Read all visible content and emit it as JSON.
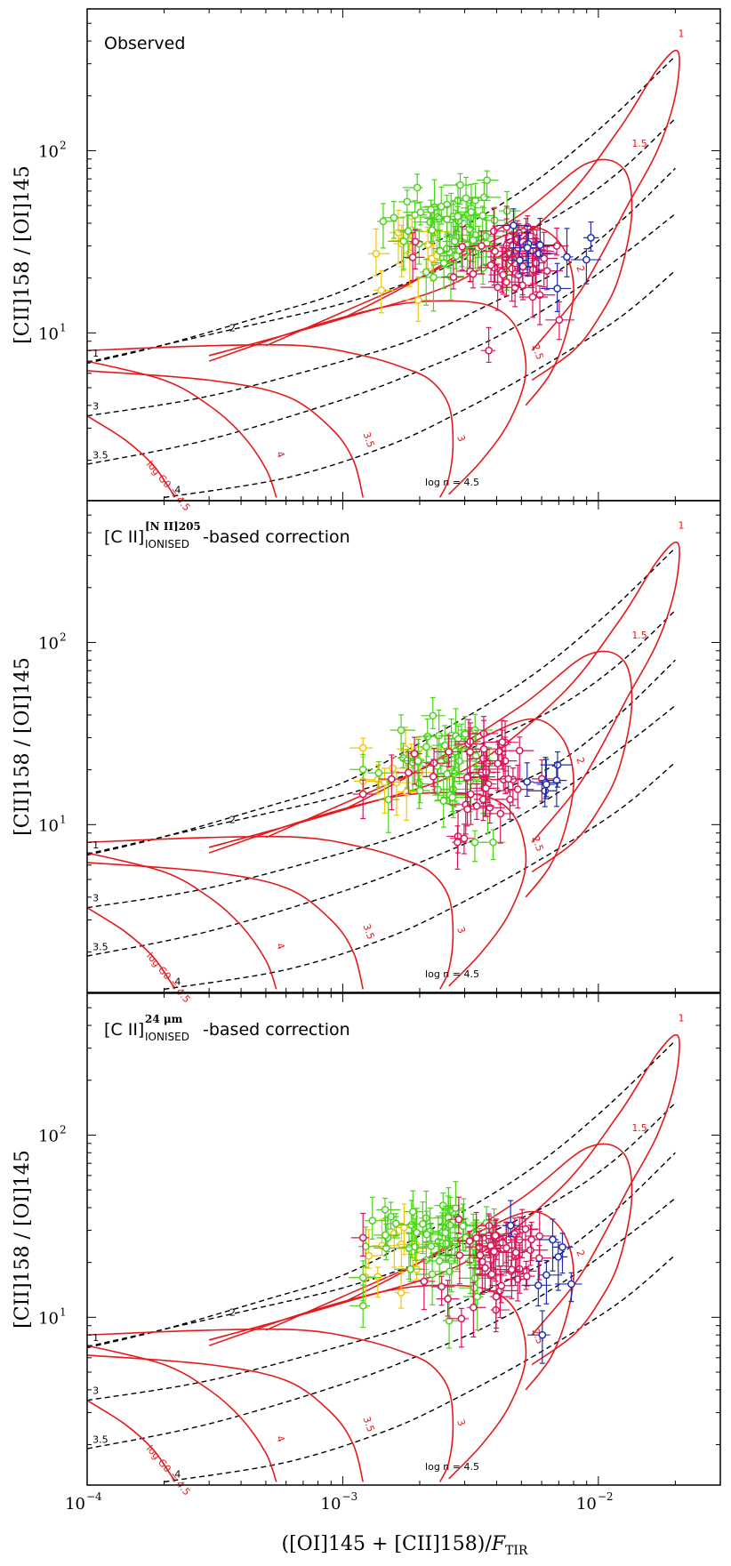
{
  "chart_data": {
    "type": "scatter",
    "x_scale": "log",
    "y_scale": "log",
    "xlim": [
      0.0001,
      0.03
    ],
    "ylim": [
      1.2,
      600
    ],
    "xlabel": "([OI]145 + [CII]158)/F_TIR",
    "xlabel_parts": {
      "a": "([OI]145 + [CII]158)/",
      "b": "F",
      "c": "TIR"
    },
    "ylabel": "[CII]158 / [OI]145",
    "x_ticks": [
      {
        "value": 0.0001,
        "base": "10",
        "exp": "−4"
      },
      {
        "value": 0.001,
        "base": "10",
        "exp": "−3"
      },
      {
        "value": 0.01,
        "base": "10",
        "exp": "−2"
      }
    ],
    "y_ticks": [
      {
        "value": 10,
        "base": "10",
        "exp": "1"
      },
      {
        "value": 100,
        "base": "10",
        "exp": "2"
      }
    ],
    "colors": {
      "yellow": "#f2c500",
      "green": "#4ad31a",
      "magenta": "#d9145a",
      "blue": "#1f2db3",
      "model_G": "#e41a1c",
      "model_n": "#000000"
    },
    "model_grid": {
      "density_labels": [
        "1",
        "2",
        "3",
        "3.5",
        "4",
        "log n = 4.5"
      ],
      "G0_labels": [
        "1",
        "1.5",
        "2",
        "2.5",
        "3",
        "3.5",
        "4",
        "log G0 = 4.5"
      ],
      "density_curves": [
        {
          "label": "1",
          "x": [
            0.0001,
            0.0002,
            0.0005,
            0.001,
            0.002,
            0.005,
            0.01,
            0.02
          ],
          "y": [
            6.8,
            8.6,
            12.5,
            17,
            28,
            60,
            130,
            330
          ]
        },
        {
          "label": "2",
          "x": [
            0.0001,
            0.0002,
            0.0005,
            0.001,
            0.002,
            0.005,
            0.008,
            0.0125,
            0.02
          ],
          "y": [
            6.9,
            8.6,
            11.5,
            14.5,
            20,
            35,
            50,
            80,
            150
          ]
        },
        {
          "label": "3",
          "x": [
            0.0001,
            0.0003,
            0.001,
            0.002,
            0.004,
            0.007,
            0.012,
            0.02
          ],
          "y": [
            3.5,
            4.5,
            7,
            9.5,
            15,
            22,
            40,
            80
          ]
        },
        {
          "label": "3.5",
          "x": [
            0.0001,
            0.0003,
            0.001,
            0.002,
            0.004,
            0.008,
            0.013,
            0.02
          ],
          "y": [
            1.9,
            2.6,
            4.3,
            6.2,
            9.5,
            17,
            28,
            45
          ]
        },
        {
          "label": "4",
          "x": [
            0.0002,
            0.0006,
            0.0015,
            0.003,
            0.006,
            0.012,
            0.02
          ],
          "y": [
            1.25,
            1.6,
            2.4,
            3.8,
            6.5,
            12,
            22
          ]
        }
      ],
      "G0_curves": [
        {
          "label": "1",
          "x": [
            0.0003,
            0.001,
            0.003,
            0.007,
            0.012,
            0.017,
            0.0205,
            0.02,
            0.017,
            0.013,
            0.01,
            0.008,
            0.0055
          ],
          "y": [
            7.5,
            12,
            20,
            50,
            130,
            280,
            350,
            200,
            100,
            50,
            25,
            15,
            8
          ]
        },
        {
          "label": "1.5",
          "x": [
            0.001,
            0.002,
            0.005,
            0.009,
            0.0125,
            0.0135,
            0.012,
            0.01,
            0.008,
            0.0055
          ],
          "y": [
            12,
            20,
            45,
            85,
            80,
            45,
            20,
            12,
            8,
            5.5
          ]
        },
        {
          "label": "2",
          "x": [
            0.0005,
            0.001,
            0.002,
            0.0035,
            0.0055,
            0.0072,
            0.008,
            0.0075,
            0.0065,
            0.0052
          ],
          "y": [
            8.5,
            13,
            20,
            30,
            38,
            30,
            18,
            10,
            6,
            4
          ]
        },
        {
          "label": "2.5",
          "x": [
            0.0003,
            0.0007,
            0.0015,
            0.0025,
            0.0038,
            0.0048,
            0.0052,
            0.0045,
            0.0035,
            0.0026
          ],
          "y": [
            7,
            10.5,
            14,
            15,
            14,
            10.5,
            6,
            3.3,
            2,
            1.3
          ]
        },
        {
          "label": "3",
          "x": [
            0.0001,
            0.0003,
            0.0007,
            0.0012,
            0.0017,
            0.0022,
            0.0026,
            0.0027,
            0.0026,
            0.0024
          ],
          "y": [
            8,
            8.5,
            8.5,
            7.5,
            6.5,
            5.5,
            4,
            2.5,
            1.6,
            1.25
          ]
        },
        {
          "label": "3.5",
          "x": [
            0.0001,
            0.0003,
            0.0006,
            0.0009,
            0.0011,
            0.0012
          ],
          "y": [
            6.2,
            5.5,
            4.5,
            3,
            2,
            1.25
          ]
        },
        {
          "label": "4",
          "x": [
            0.0001,
            0.0002,
            0.0003,
            0.0004,
            0.0005,
            0.00055
          ],
          "y": [
            7,
            5.5,
            4,
            2.8,
            1.8,
            1.25
          ]
        },
        {
          "label": "log G0 = 4.5",
          "x": [
            0.0001,
            0.00014,
            0.00018,
            0.00021,
            0.00022
          ],
          "y": [
            3.5,
            2.6,
            1.9,
            1.4,
            1.25
          ]
        }
      ]
    },
    "panels": [
      {
        "title": "Observed",
        "groups": [
          {
            "name": "yellow",
            "x_mean": 0.00185,
            "x_sd": 0.0003,
            "y_mean": 29,
            "y_sd": 6,
            "n": 14
          },
          {
            "name": "green",
            "x_mean": 0.0029,
            "x_sd": 0.0008,
            "y_mean": 38,
            "y_sd": 11,
            "n": 60
          },
          {
            "name": "magenta",
            "x_mean": 0.0047,
            "x_sd": 0.0011,
            "y_mean": 26,
            "y_sd": 7,
            "n": 50
          },
          {
            "name": "blue",
            "x_mean": 0.0068,
            "x_sd": 0.0013,
            "y_mean": 25,
            "y_sd": 8,
            "n": 10
          }
        ]
      },
      {
        "title": "[CII]^[NII]205_IONISED-based correction",
        "title_parts": {
          "main": "[C II]",
          "sup": "[N II]205",
          "sub": "IONISED",
          "rest": "-based correction"
        },
        "groups": [
          {
            "name": "yellow",
            "x_mean": 0.0018,
            "x_sd": 0.0003,
            "y_mean": 21,
            "y_sd": 5,
            "n": 12
          },
          {
            "name": "green",
            "x_mean": 0.0026,
            "x_sd": 0.0007,
            "y_mean": 23,
            "y_sd": 7,
            "n": 45
          },
          {
            "name": "magenta",
            "x_mean": 0.0036,
            "x_sd": 0.0011,
            "y_mean": 18,
            "y_sd": 6,
            "n": 45
          },
          {
            "name": "blue",
            "x_mean": 0.0055,
            "x_sd": 0.0008,
            "y_mean": 19,
            "y_sd": 5,
            "n": 6
          }
        ]
      },
      {
        "title": "[CII]^24μm_IONISED-based correction",
        "title_parts": {
          "main": "[C II]",
          "sup": "24 μm",
          "sub": "IONISED",
          "rest": "-based correction"
        },
        "groups": [
          {
            "name": "yellow",
            "x_mean": 0.0016,
            "x_sd": 0.0003,
            "y_mean": 22,
            "y_sd": 5,
            "n": 12
          },
          {
            "name": "green",
            "x_mean": 0.0025,
            "x_sd": 0.0007,
            "y_mean": 27,
            "y_sd": 8,
            "n": 60
          },
          {
            "name": "magenta",
            "x_mean": 0.0041,
            "x_sd": 0.001,
            "y_mean": 21,
            "y_sd": 6,
            "n": 50
          },
          {
            "name": "blue",
            "x_mean": 0.0065,
            "x_sd": 0.0015,
            "y_mean": 20,
            "y_sd": 8,
            "n": 8
          }
        ]
      }
    ]
  }
}
